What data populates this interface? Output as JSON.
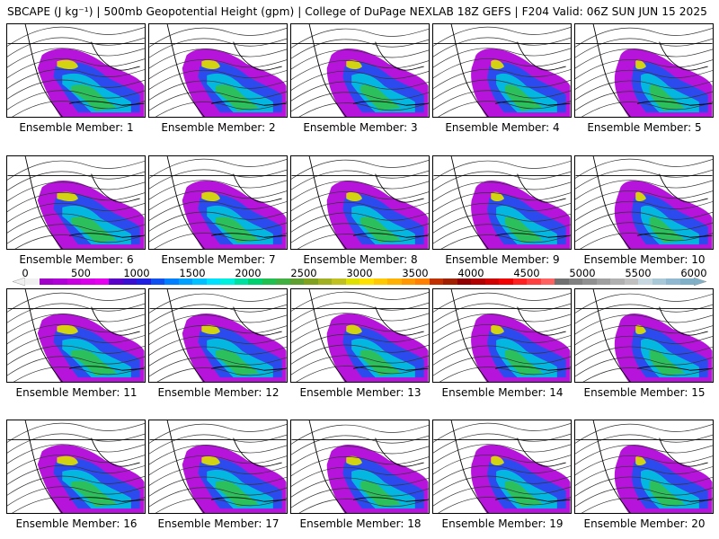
{
  "title": "SBCAPE (J kg⁻¹) | 500mb Geopotential Height (gpm) | College of DuPage NEXLAB 18Z GEFS | F204 Valid: 06Z SUN JUN 15 2025",
  "members": [
    {
      "label": "Ensemble Member: 1"
    },
    {
      "label": "Ensemble Member: 2"
    },
    {
      "label": "Ensemble Member: 3"
    },
    {
      "label": "Ensemble Member: 4"
    },
    {
      "label": "Ensemble Member: 5"
    },
    {
      "label": "Ensemble Member: 6"
    },
    {
      "label": "Ensemble Member: 7"
    },
    {
      "label": "Ensemble Member: 8"
    },
    {
      "label": "Ensemble Member: 9"
    },
    {
      "label": "Ensemble Member: 10"
    },
    {
      "label": "Ensemble Member: 11"
    },
    {
      "label": "Ensemble Member: 12"
    },
    {
      "label": "Ensemble Member: 13"
    },
    {
      "label": "Ensemble Member: 14"
    },
    {
      "label": "Ensemble Member: 15"
    },
    {
      "label": "Ensemble Member: 16"
    },
    {
      "label": "Ensemble Member: 17"
    },
    {
      "label": "Ensemble Member: 18"
    },
    {
      "label": "Ensemble Member: 19"
    },
    {
      "label": "Ensemble Member: 20"
    }
  ],
  "colorbar": {
    "ticks": [
      "0",
      "500",
      "1000",
      "1500",
      "2000",
      "2500",
      "3000",
      "3500",
      "4000",
      "4500",
      "5000",
      "5500",
      "6000"
    ],
    "min": 0,
    "max": 6000,
    "colors": [
      "#f0f0f0",
      "#a000c8",
      "#b000d8",
      "#c800e0",
      "#d800e8",
      "#e600f0",
      "#5a00c8",
      "#3a10d0",
      "#2020e0",
      "#1050f0",
      "#0080ff",
      "#00a0ff",
      "#00c0ff",
      "#00e0ff",
      "#00f0e0",
      "#00e0a0",
      "#00d070",
      "#20c050",
      "#40b040",
      "#60a030",
      "#80a020",
      "#a0b020",
      "#c0c020",
      "#e0e000",
      "#ffe000",
      "#ffc800",
      "#ffb000",
      "#ff9800",
      "#ff8000",
      "#c03000",
      "#a02000",
      "#900000",
      "#b00000",
      "#d00000",
      "#f00000",
      "#ff2020",
      "#ff4040",
      "#ff6060",
      "#707070",
      "#808080",
      "#909090",
      "#a0a0a0",
      "#b0b0b0",
      "#c0c0c0",
      "#c8d8e0",
      "#a8c8d8",
      "#90b8d0",
      "#80b0c8"
    ]
  }
}
